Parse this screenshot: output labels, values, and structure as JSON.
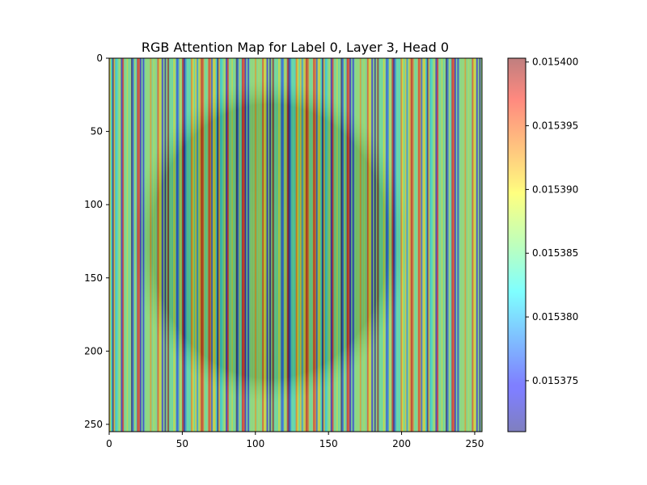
{
  "chart_data": {
    "type": "heatmap",
    "title": "RGB Attention Map for Label 0, Layer 3, Head 0",
    "xlabel": "",
    "ylabel": "",
    "xlim": [
      0,
      255
    ],
    "ylim": [
      255,
      0
    ],
    "x_ticks": [
      0,
      50,
      100,
      150,
      200,
      250
    ],
    "y_ticks": [
      0,
      50,
      100,
      150,
      200,
      250
    ],
    "colorbar": {
      "colormap": "jet",
      "alpha": 0.5,
      "vmin": 0.015371,
      "vmax": 0.0154003,
      "ticks": [
        0.015375,
        0.01538,
        0.015385,
        0.01539,
        0.015395,
        0.0154
      ],
      "tick_labels": [
        "0.015375",
        "0.015380",
        "0.015385",
        "0.015390",
        "0.015395",
        "0.015400"
      ]
    },
    "column_pattern": [
      0.01539,
      0.015376,
      0.015395,
      0.015387,
      0.015384,
      0.0154,
      0.015386,
      0.015382,
      0.015379,
      0.015389,
      0.015374,
      0.015386,
      0.015384,
      0.015392,
      0.015371,
      0.015387,
      0.015388,
      0.015385,
      0.015396,
      0.015383,
      0.015385,
      0.015378,
      0.015391,
      0.015386,
      0.015375,
      0.015385,
      0.015393,
      0.015384,
      0.015387,
      0.015381,
      0.015398,
      0.015386,
      0.015385,
      0.015377,
      0.015389,
      0.015386,
      0.015383,
      0.015394,
      0.015372,
      0.015386,
      0.015388,
      0.015384,
      0.015385,
      0.015397,
      0.015386,
      0.015379,
      0.015386,
      0.015384
    ],
    "overlay_image": {
      "description": "round grey object centred in frame",
      "center": [
        110,
        125
      ],
      "radius": [
        95,
        110
      ]
    },
    "colors": {
      "background": "#ffffff",
      "axes": "#000000"
    }
  }
}
